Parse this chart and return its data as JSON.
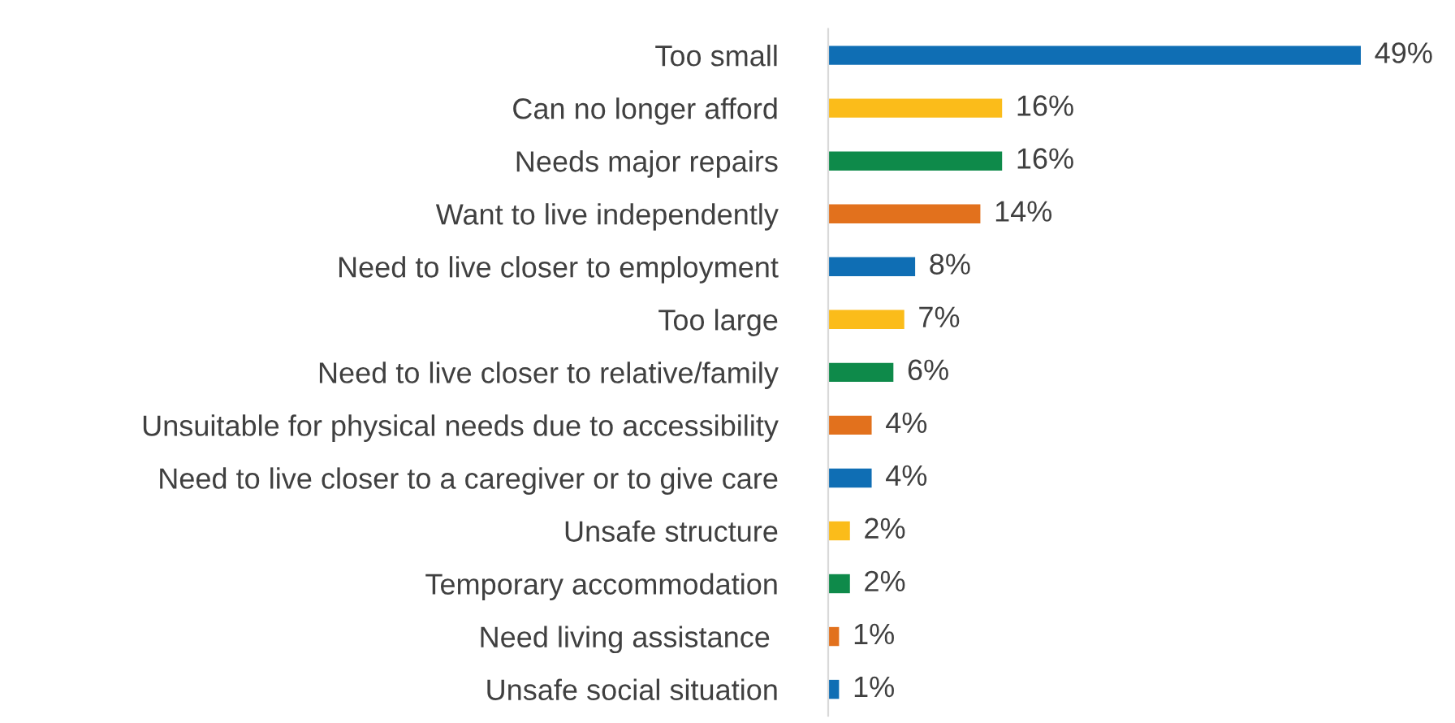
{
  "chart_data": {
    "type": "bar",
    "orientation": "horizontal",
    "categories": [
      "Too small",
      "Can no longer afford",
      "Needs major repairs",
      "Want to live independently",
      "Need to live closer to employment",
      "Too large",
      "Need to live closer to relative/family",
      "Unsuitable for physical needs due to accessibility",
      "Need to live closer to a caregiver or to give care",
      "Unsafe structure",
      "Temporary accommodation",
      "Need living assistance ",
      "Unsafe social situation"
    ],
    "values": [
      49,
      16,
      16,
      14,
      8,
      7,
      6,
      4,
      4,
      2,
      2,
      1,
      1
    ],
    "value_labels": [
      "49%",
      "16%",
      "16%",
      "14%",
      "8%",
      "7%",
      "6%",
      "4%",
      "4%",
      "2%",
      "2%",
      "1%",
      "1%"
    ],
    "colors": [
      "#0f6eb4",
      "#fbbc1a",
      "#0e8a4a",
      "#e2711d",
      "#0f6eb4",
      "#fbbc1a",
      "#0e8a4a",
      "#e2711d",
      "#0f6eb4",
      "#fbbc1a",
      "#0e8a4a",
      "#e2711d",
      "#0f6eb4"
    ],
    "grid": false,
    "legend": false
  }
}
